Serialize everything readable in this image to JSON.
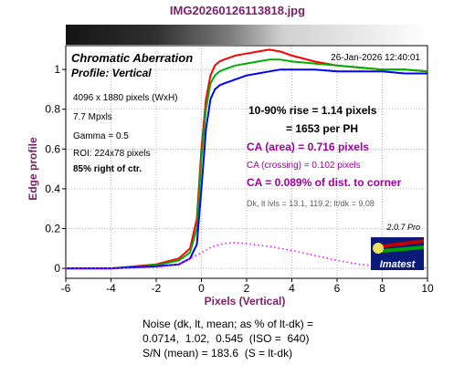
{
  "header": {
    "filename": "IMG20260126113818.jpg"
  },
  "chart_data": {
    "type": "line",
    "title": "Chromatic Aberration",
    "subtitle": "Profile: Vertical",
    "timestamp": "26-Jan-2026 12:40:01",
    "xlabel": "Pixels (Vertical)",
    "ylabel": "Edge profile",
    "xlim": [
      -6,
      10
    ],
    "ylim": [
      -0.05,
      1.12
    ],
    "xticks": [
      -6,
      -4,
      -2,
      0,
      2,
      4,
      6,
      8,
      10
    ],
    "yticks": [
      0,
      0.2,
      0.4,
      0.6,
      0.8,
      1
    ],
    "xtick_labels": [
      "-6",
      "-4",
      "-2",
      "0",
      "2",
      "4",
      "6",
      "8",
      "10"
    ],
    "ytick_labels": [
      "0",
      "0.2",
      "0.4",
      "0.6",
      "0.8",
      "1"
    ],
    "series": [
      {
        "color": "#ff0000",
        "x": [
          -6,
          -4,
          -2,
          -1,
          -0.5,
          -0.2,
          0,
          0.2,
          0.4,
          0.6,
          0.8,
          1,
          1.5,
          2,
          2.5,
          3,
          3.5,
          4,
          5,
          6,
          7,
          8,
          9,
          10
        ],
        "values": [
          0,
          0,
          0.02,
          0.05,
          0.1,
          0.25,
          0.6,
          0.85,
          0.97,
          1.02,
          1.04,
          1.05,
          1.07,
          1.08,
          1.09,
          1.1,
          1.09,
          1.07,
          1.04,
          1.02,
          1.01,
          1.0,
          1.0,
          0.99
        ]
      },
      {
        "color": "#00b000",
        "x": [
          -6,
          -4,
          -2,
          -1,
          -0.5,
          -0.2,
          0,
          0.2,
          0.4,
          0.6,
          0.8,
          1,
          1.5,
          2,
          2.5,
          3,
          3.5,
          4,
          5,
          6,
          7,
          8,
          9,
          10
        ],
        "values": [
          0,
          0,
          0.015,
          0.04,
          0.08,
          0.2,
          0.55,
          0.8,
          0.93,
          0.97,
          0.99,
          1.0,
          1.02,
          1.03,
          1.04,
          1.05,
          1.05,
          1.04,
          1.03,
          1.02,
          1.01,
          1.0,
          1.0,
          0.99
        ]
      },
      {
        "color": "#0000ff",
        "x": [
          -6,
          -4,
          -2,
          -1,
          -0.5,
          -0.2,
          0,
          0.2,
          0.4,
          0.6,
          0.8,
          1,
          1.5,
          2,
          2.5,
          3,
          3.5,
          4,
          5,
          6,
          7,
          8,
          9,
          10
        ],
        "values": [
          0,
          0,
          0.01,
          0.02,
          0.05,
          0.12,
          0.4,
          0.7,
          0.85,
          0.9,
          0.92,
          0.93,
          0.95,
          0.97,
          0.98,
          0.99,
          1.0,
          1.0,
          1.0,
          0.99,
          0.99,
          0.99,
          0.98,
          0.98
        ]
      },
      {
        "color": "#ff00ff",
        "dashed": true,
        "x": [
          -6,
          -4,
          -2,
          -1,
          0,
          0.5,
          1,
          1.5,
          2,
          3,
          4,
          5,
          6,
          7,
          8,
          9,
          10
        ],
        "values": [
          0,
          0,
          0.005,
          0.02,
          0.08,
          0.11,
          0.125,
          0.13,
          0.125,
          0.11,
          0.09,
          0.065,
          0.04,
          0.02,
          0.01,
          0.005,
          0.002
        ]
      }
    ],
    "annotations": {
      "image_info": [
        "4096 x 1880 pixels (WxH)",
        "7.7 Mpxls",
        "Gamma = 0.5",
        "ROI: 224x78 pixels",
        "85% right of ctr."
      ],
      "rise_line1": "10-90% rise = 1.14 pixels",
      "rise_line2": "= 1653 per PH",
      "ca_area": "CA (area) = 0.716 pixels",
      "ca_crossing": "CA (crossing) = 0.102 pixels",
      "ca_corner": "CA = 0.089% of dist. to corner",
      "levels": "Dk, lt lvls = 13.1, 119.2;  lt/dk = 9.08",
      "version": "2.0.7  Pro",
      "logo_text": "Imatest"
    },
    "colors": {
      "title": "#7a1f6a",
      "ca": "#a000a0",
      "levels": "#606060"
    }
  },
  "footer": {
    "line1": "Noise (dk, lt, mean; as % of lt-dk) =",
    "line2": "0.0714,  1.02,  0.545  (ISO =  640)",
    "line3": "S/N (mean) = 183.6  (S = lt-dk)"
  }
}
